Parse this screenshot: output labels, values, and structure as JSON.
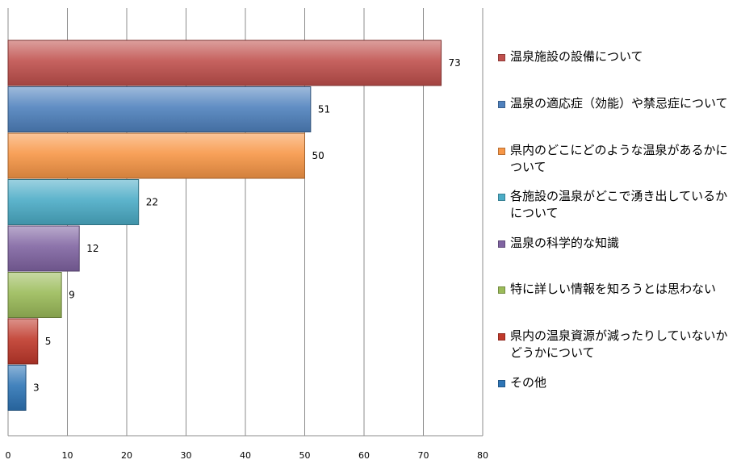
{
  "chart_data": {
    "type": "bar",
    "orientation": "horizontal",
    "title": "",
    "xlabel": "",
    "ylabel": "",
    "xlim": [
      0,
      80
    ],
    "x_ticks": [
      0,
      10,
      20,
      30,
      40,
      50,
      60,
      70,
      80
    ],
    "grid": true,
    "legend_position": "right",
    "show_data_labels": true,
    "categories": [
      "温泉施設の設備について",
      "温泉の適応症（効能）や禁忌症について",
      "県内のどこにどのような温泉があるかについて",
      "各施設の温泉がどこで湧き出しているかについて",
      "温泉の科学的な知識",
      "特に詳しい情報を知ろうとは思わない",
      "県内の温泉資源が減ったりしていないかどうかについて",
      "その他"
    ],
    "values": [
      73,
      51,
      50,
      22,
      12,
      9,
      5,
      3
    ],
    "colors": [
      "#c0504d",
      "#4f81bd",
      "#f79646",
      "#4bacc6",
      "#8064a2",
      "#9bbb59",
      "#c0392b",
      "#2e75b6"
    ]
  }
}
